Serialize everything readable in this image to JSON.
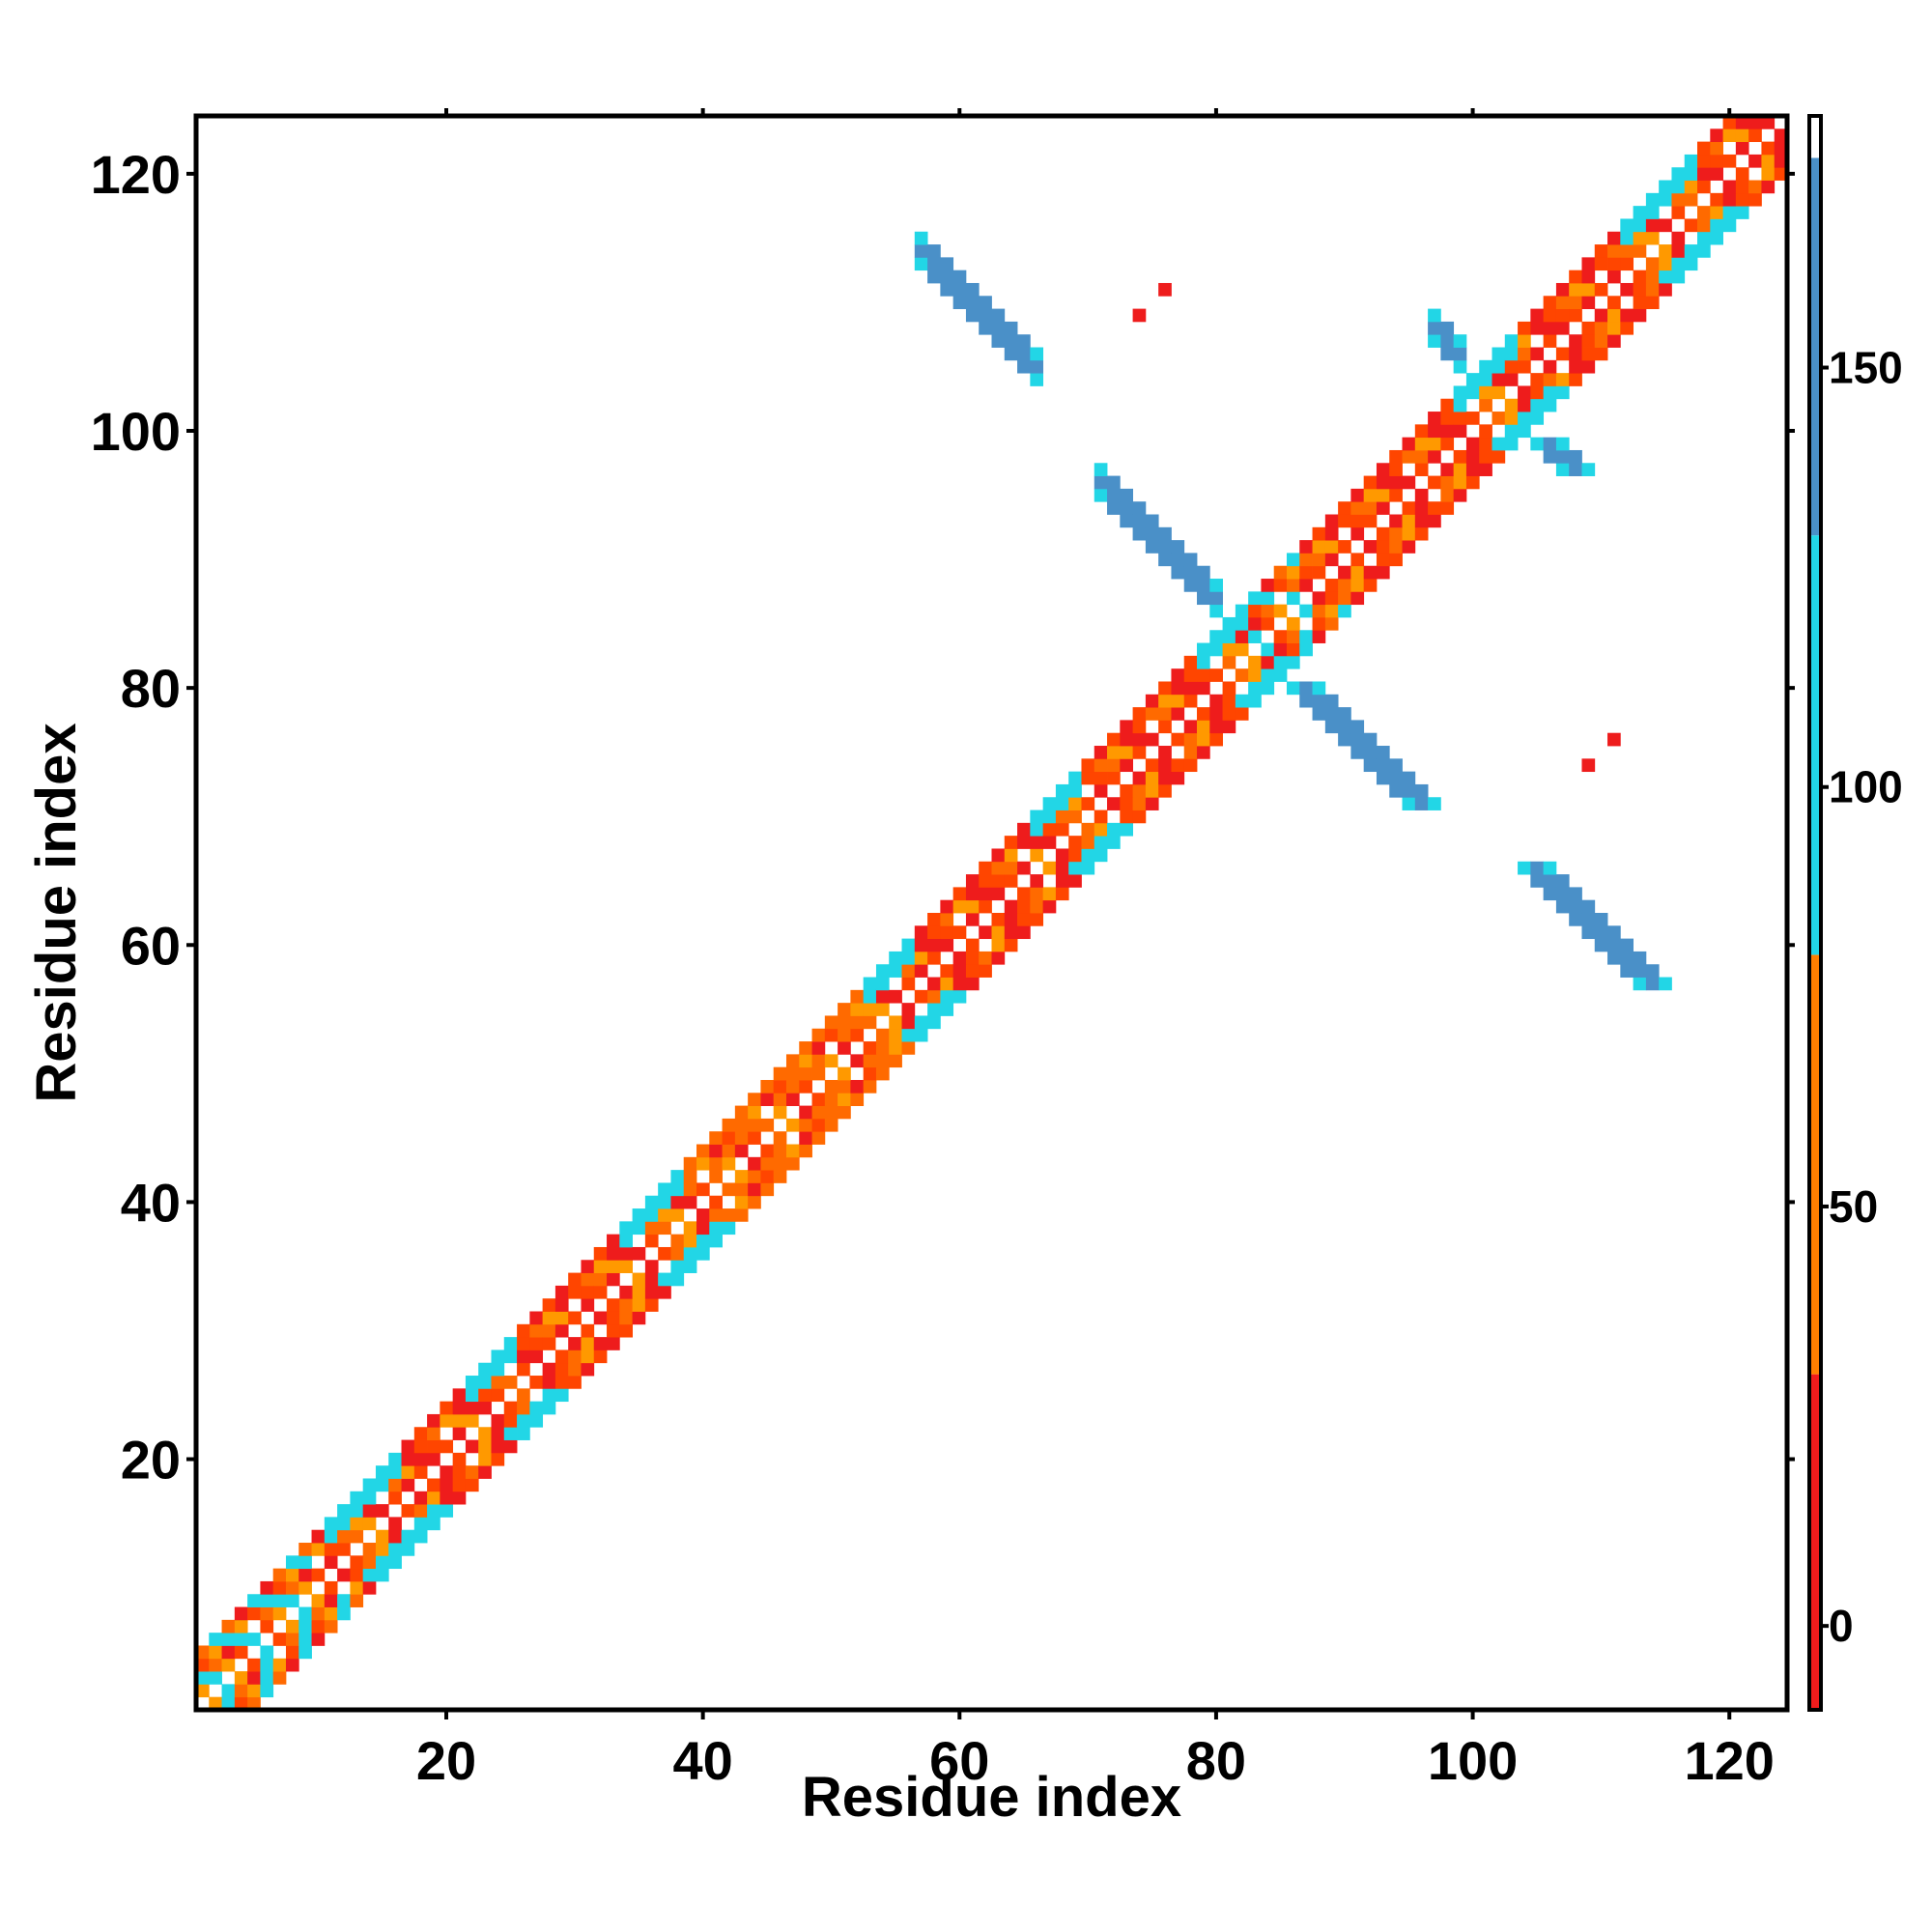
{
  "chart_data": {
    "type": "heatmap",
    "title": "",
    "xlabel": "Residue index",
    "ylabel": "Residue index",
    "xlim": [
      1,
      124
    ],
    "ylim": [
      1,
      124
    ],
    "x_ticks": [
      20,
      40,
      60,
      80,
      100,
      120
    ],
    "y_ticks": [
      20,
      40,
      60,
      80,
      100,
      120
    ],
    "grid": false,
    "legend": "none",
    "colorbar": {
      "position": "right",
      "range": [
        -10,
        180
      ],
      "ticks": [
        0,
        50,
        100,
        150
      ],
      "bands": [
        {
          "from": -10,
          "to": 30,
          "color": "#ee1c1c"
        },
        {
          "from": 30,
          "to": 80,
          "color": "#ff7f00"
        },
        {
          "from": 80,
          "to": 130,
          "color": "#22d6e6"
        },
        {
          "from": 130,
          "to": 175,
          "color": "#4a90c8"
        },
        {
          "from": 175,
          "to": 180,
          "color": "#ffffff"
        }
      ]
    },
    "value_classes": {
      "red": 10,
      "red_orange": 30,
      "orange": 50,
      "amber": 70,
      "cyan": 110,
      "steel_blue": 160
    },
    "diagonal_band": {
      "description": "symmetric near-diagonal contacts for offsets 1-4",
      "segments": [
        {
          "from": 1,
          "to": 11,
          "class": "mixed"
        },
        {
          "from": 11,
          "to": 17,
          "class": "cyan"
        },
        {
          "from": 17,
          "to": 22,
          "class": "red"
        },
        {
          "from": 22,
          "to": 26,
          "class": "cyan"
        },
        {
          "from": 26,
          "to": 34,
          "class": "red"
        },
        {
          "from": 34,
          "to": 39,
          "class": "cyan"
        },
        {
          "from": 39,
          "to": 48,
          "class": "orange"
        },
        {
          "from": 48,
          "to": 53,
          "class": "orange"
        },
        {
          "from": 53,
          "to": 57,
          "class": "cyan"
        },
        {
          "from": 57,
          "to": 61,
          "class": "red"
        },
        {
          "from": 61,
          "to": 66,
          "class": "red"
        },
        {
          "from": 66,
          "to": 70,
          "class": "cyan"
        },
        {
          "from": 70,
          "to": 79,
          "class": "red"
        },
        {
          "from": 79,
          "to": 83,
          "class": "cyan"
        },
        {
          "from": 83,
          "to": 87,
          "class": "mixed"
        },
        {
          "from": 87,
          "to": 99,
          "class": "red"
        },
        {
          "from": 99,
          "to": 104,
          "class": "cyan"
        },
        {
          "from": 104,
          "to": 112,
          "class": "red"
        },
        {
          "from": 112,
          "to": 118,
          "class": "cyan"
        },
        {
          "from": 118,
          "to": 124,
          "class": "red"
        }
      ]
    },
    "off_diagonal_contacts": [
      {
        "x_range": [
          57,
          66
        ],
        "y_center_at_start": 114,
        "slope": -1,
        "class": "steel_blue"
      },
      {
        "x_range": [
          71,
          80
        ],
        "y_center_at_start": 96,
        "slope": -1,
        "class": "steel_blue"
      },
      {
        "x_range": [
          97,
          99
        ],
        "y_center_at_start": 108,
        "slope": -1,
        "class": "steel_blue"
      },
      {
        "points": [
          [
            74,
            109
          ],
          [
            76,
            111
          ],
          [
            109,
            74
          ],
          [
            111,
            76
          ]
        ],
        "class": "red"
      }
    ]
  }
}
